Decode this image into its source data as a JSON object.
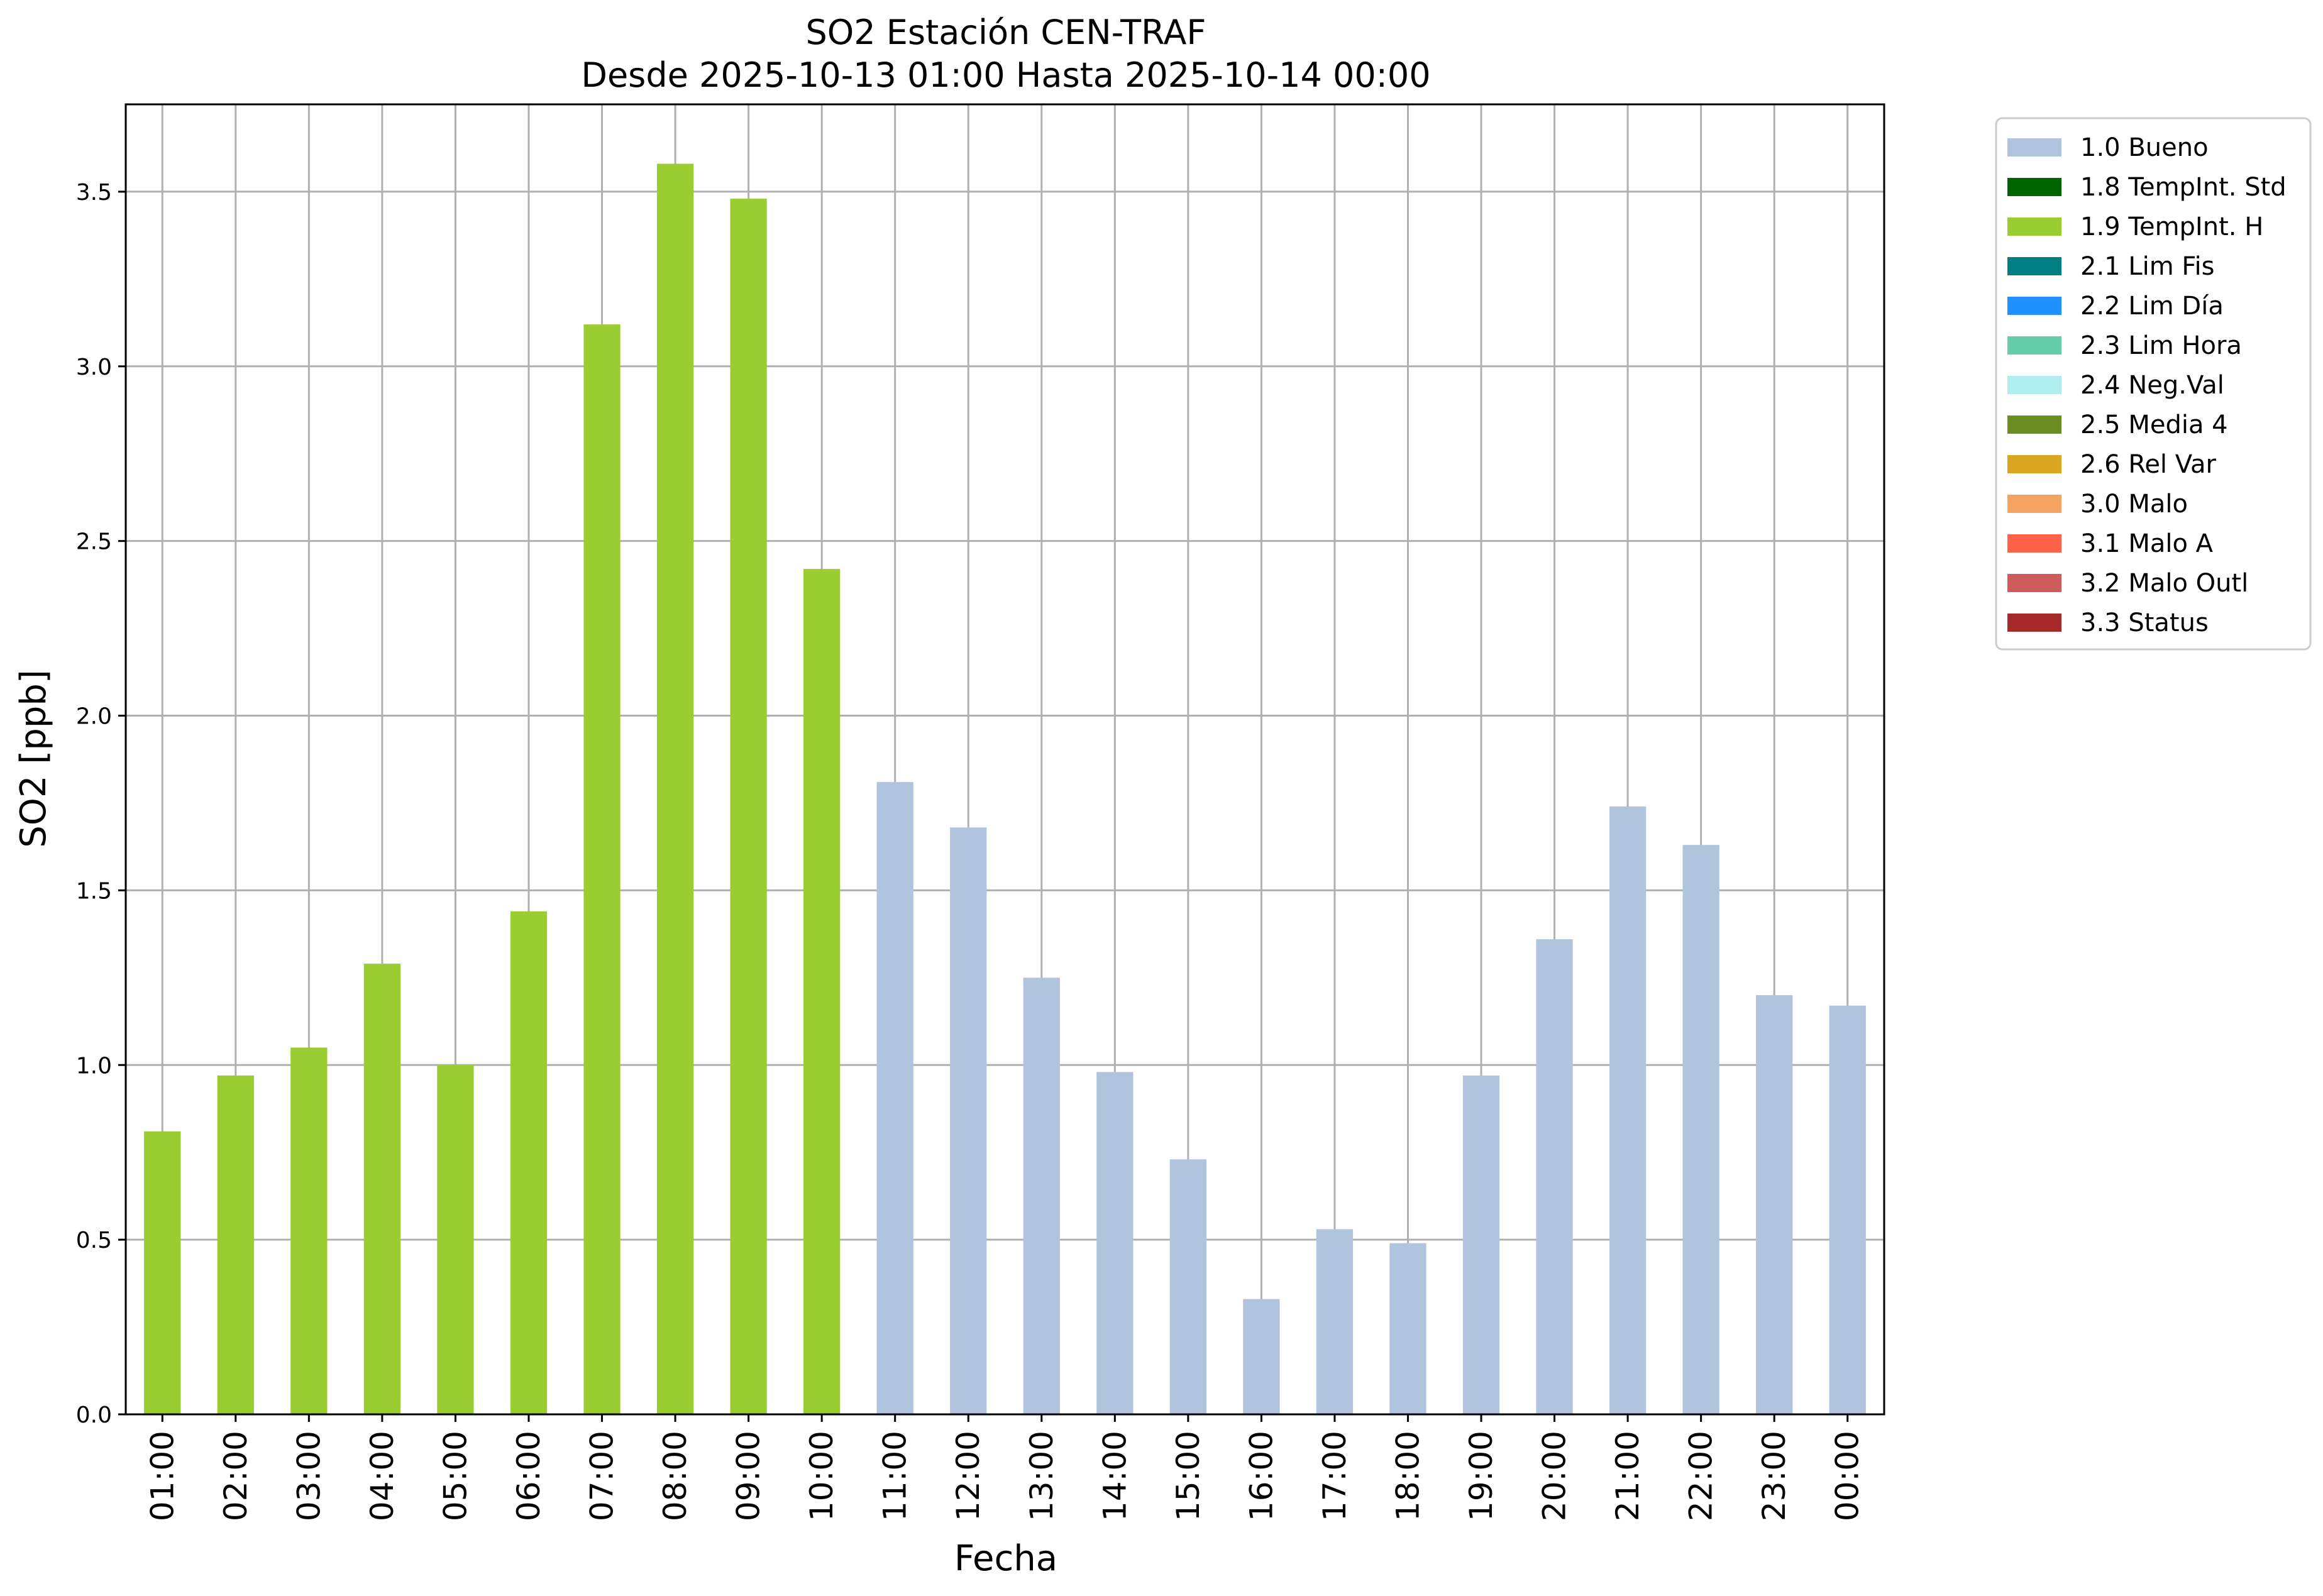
{
  "chart_data": {
    "type": "bar",
    "title_line1": "SO2 Estación CEN-TRAF",
    "title_line2": "Desde 2025-10-13 01:00 Hasta 2025-10-14 00:00",
    "xlabel": "Fecha",
    "ylabel": "SO2 [ppb]",
    "ylim": [
      0,
      3.75
    ],
    "yticks": [
      0.0,
      0.5,
      1.0,
      1.5,
      2.0,
      2.5,
      3.0,
      3.5
    ],
    "ytick_labels": [
      "0.0",
      "0.5",
      "1.0",
      "1.5",
      "2.0",
      "2.5",
      "3.0",
      "3.5"
    ],
    "grid": true,
    "legend_position": "outside-right-top",
    "categories": [
      "01:00",
      "02:00",
      "03:00",
      "04:00",
      "05:00",
      "06:00",
      "07:00",
      "08:00",
      "09:00",
      "10:00",
      "11:00",
      "12:00",
      "13:00",
      "14:00",
      "15:00",
      "16:00",
      "17:00",
      "18:00",
      "19:00",
      "20:00",
      "21:00",
      "22:00",
      "23:00",
      "00:00"
    ],
    "values": [
      0.81,
      0.97,
      1.05,
      1.29,
      1.0,
      1.44,
      3.12,
      3.58,
      3.48,
      2.42,
      1.81,
      1.68,
      1.25,
      0.98,
      0.73,
      0.33,
      0.53,
      0.49,
      0.97,
      1.36,
      1.74,
      1.63,
      1.2,
      1.17
    ],
    "flags": [
      "1.9",
      "1.9",
      "1.9",
      "1.9",
      "1.9",
      "1.9",
      "1.9",
      "1.9",
      "1.9",
      "1.9",
      "1.0",
      "1.0",
      "1.0",
      "1.0",
      "1.0",
      "1.0",
      "1.0",
      "1.0",
      "1.0",
      "1.0",
      "1.0",
      "1.0",
      "1.0",
      "1.0"
    ],
    "legend": [
      {
        "code": "1.0",
        "label": "1.0 Bueno",
        "color": "#b0c4de"
      },
      {
        "code": "1.8",
        "label": "1.8 TempInt. Std",
        "color": "#006400"
      },
      {
        "code": "1.9",
        "label": "1.9 TempInt. H",
        "color": "#9acd32"
      },
      {
        "code": "2.1",
        "label": "2.1 Lim Fis",
        "color": "#008080"
      },
      {
        "code": "2.2",
        "label": "2.2 Lim Día",
        "color": "#1e90ff"
      },
      {
        "code": "2.3",
        "label": "2.3 Lim Hora",
        "color": "#66cdaa"
      },
      {
        "code": "2.4",
        "label": "2.4 Neg.Val",
        "color": "#afeeee"
      },
      {
        "code": "2.5",
        "label": "2.5 Media 4",
        "color": "#6b8e23"
      },
      {
        "code": "2.6",
        "label": "2.6 Rel Var",
        "color": "#daa520"
      },
      {
        "code": "3.0",
        "label": "3.0 Malo",
        "color": "#f4a460"
      },
      {
        "code": "3.1",
        "label": "3.1 Malo A",
        "color": "#ff6347"
      },
      {
        "code": "3.2",
        "label": "3.2 Malo Outl",
        "color": "#cd5c5c"
      },
      {
        "code": "3.3",
        "label": "3.3 Status",
        "color": "#a52a2a"
      }
    ],
    "grid_color": "#b0b0b0"
  }
}
